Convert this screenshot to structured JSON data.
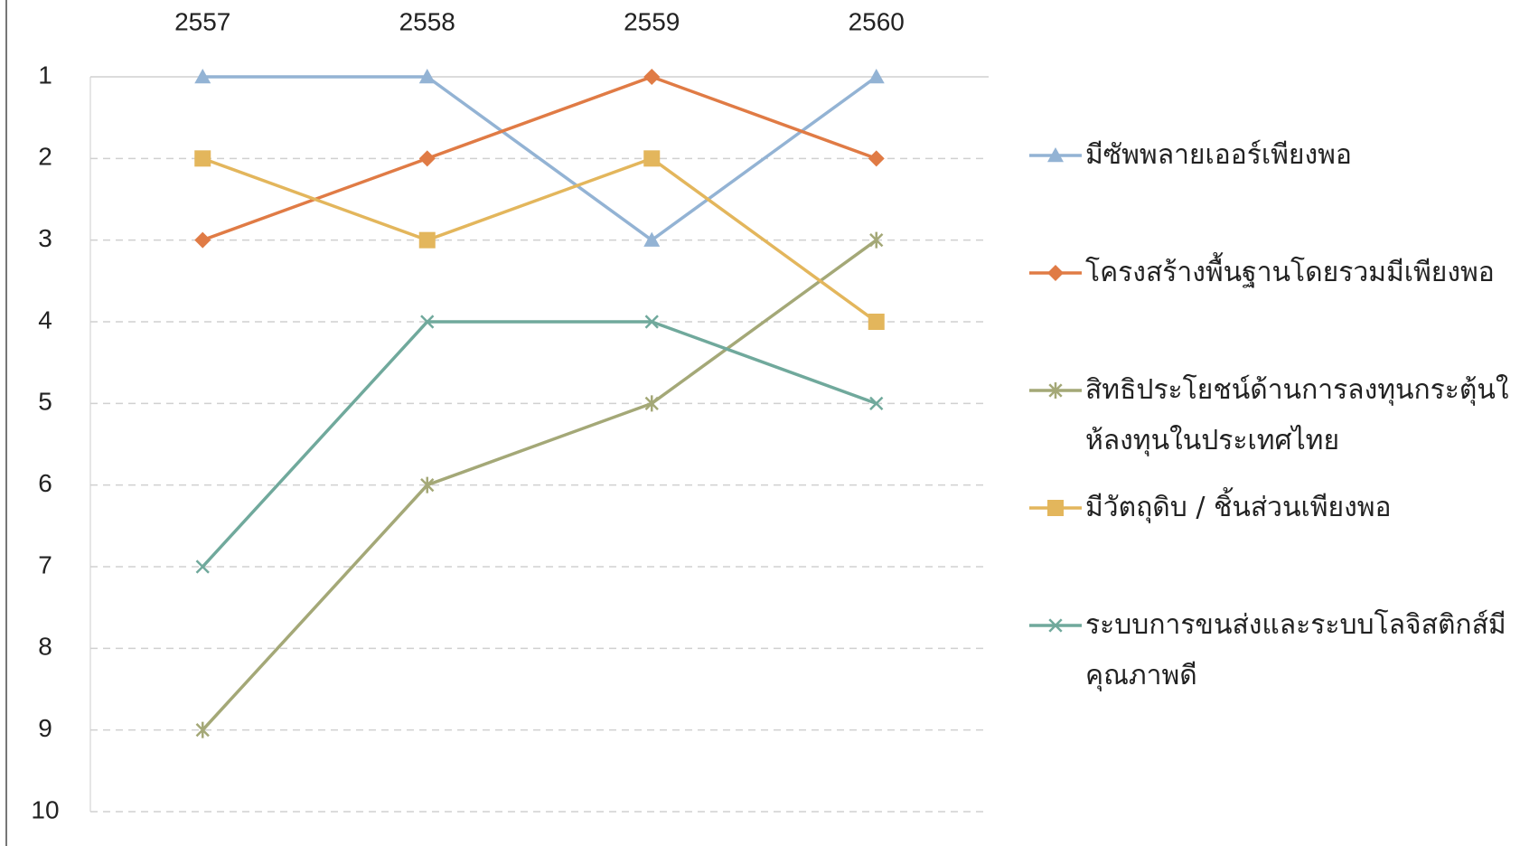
{
  "chart_data": {
    "type": "line",
    "categories": [
      "2557",
      "2558",
      "2559",
      "2560"
    ],
    "ylim": [
      1,
      10
    ],
    "y_inverted": true,
    "yticks": [
      1,
      2,
      3,
      4,
      5,
      6,
      7,
      8,
      9,
      10
    ],
    "grid": true,
    "legend": "right",
    "series": [
      {
        "name": "มีซัพพลายเออร์เพียงพอ",
        "color": "#93b3d4",
        "marker": "triangle",
        "values": [
          1,
          1,
          3,
          1
        ]
      },
      {
        "name": "โครงสร้างพื้นฐานโดยรวมมีเพียงพอ",
        "color": "#e07b45",
        "marker": "diamond",
        "values": [
          3,
          2,
          1,
          2
        ]
      },
      {
        "name": "สิทธิประโยชน์ด้านการลงทุนกระตุ้นให้ลงทุนในประเทศไทย",
        "color": "#a4a877",
        "marker": "asterisk",
        "values": [
          9,
          6,
          5,
          3
        ]
      },
      {
        "name": "มีวัตถุดิบ / ชิ้นส่วนเพียงพอ",
        "color": "#e3b65c",
        "marker": "square",
        "values": [
          2,
          3,
          2,
          4
        ]
      },
      {
        "name": "ระบบการขนส่งและระบบโลจิสติกส์มีคุณภาพดี",
        "color": "#70a99c",
        "marker": "x",
        "values": [
          7,
          4,
          4,
          5
        ]
      }
    ]
  }
}
